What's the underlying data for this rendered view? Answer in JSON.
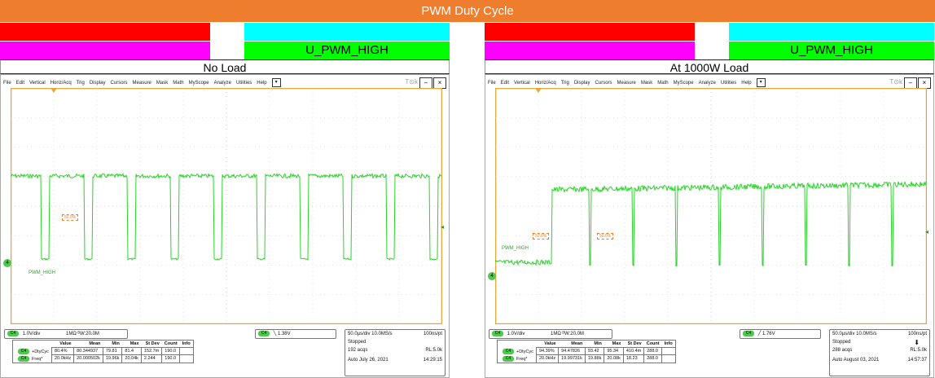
{
  "title": "PWM Duty Cycle",
  "colors": {
    "title_bg": "#ef7d2e",
    "trace": "#2bd32b",
    "graticule": "#e8a53a",
    "cursor": "#e7822d"
  },
  "panels": [
    {
      "band_label": "U_PWM_HIGH",
      "load_label": "No Load",
      "scope": {
        "menu": [
          "File",
          "Edit",
          "Vertical",
          "Horiz/Acq",
          "Trig",
          "Display",
          "Cursors",
          "Measure",
          "Mask",
          "Math",
          "MyScope",
          "Analyze",
          "Utilities",
          "Help"
        ],
        "trace_label": "PWM_HIGH",
        "cursor_tags": [
          "50.0%"
        ],
        "ch_scale": "1.0V/div",
        "ch_impedance": "1MΩ ᴮW:20.0M",
        "trigger": "1.38V",
        "timebase": "50.0µs/div 10.0MS/s",
        "ns_pt": "100ns/pt",
        "state": "Stopped",
        "acqs": "192 acqs",
        "rl": "RL:5.0k",
        "mode_date": "Auto   July 26, 2021",
        "time": "14:29:15",
        "meas_headers": [
          "Value",
          "Mean",
          "Min",
          "Max",
          "St Dev",
          "Count",
          "Info"
        ],
        "meas_rows": [
          {
            "name": "+DtyCyc",
            "vals": [
              "80.4%",
              "80.344937",
              "79.81",
              "81.4",
              "152.7m",
              "190.0",
              ""
            ]
          },
          {
            "name": "Freq*",
            "vals": [
              "20.0kHz",
              "20.000502k",
              "19.96k",
              "20.04k",
              "2.244",
              "190.0",
              ""
            ]
          }
        ]
      }
    },
    {
      "band_label": "U_PWM_HIGH",
      "load_label": "At 1000W Load",
      "scope": {
        "menu": [
          "File",
          "Edit",
          "Vertical",
          "Horiz/Acq",
          "Trig",
          "Display",
          "Cursors",
          "Measure",
          "Mask",
          "Math",
          "MyScope",
          "Analyze",
          "Utilities",
          "Help"
        ],
        "trace_label": "PWM_HIGH",
        "cursor_tags": [
          "50.0%",
          "50.0%"
        ],
        "ch_scale": "1.0V/div",
        "ch_impedance": "1MΩ ᴮW:20.0M",
        "trigger": "1.76V",
        "timebase": "50.0µs/div 10.0MS/s",
        "ns_pt": "100ns/pt",
        "state": "Stopped",
        "acqs": "288 acqs",
        "rl": "RL:5.0k",
        "mode_date": "Auto   August 03, 2021",
        "time": "14:57:37",
        "meas_headers": [
          "Value",
          "Mean",
          "Min",
          "Max",
          "St Dev",
          "Count",
          "Info"
        ],
        "meas_rows": [
          {
            "name": "+DtyCyc",
            "vals": [
              "94.39%",
              "94.47826",
              "93.42",
              "95.34",
              "410.4m",
              "288.0",
              ""
            ]
          },
          {
            "name": "Freq*",
            "vals": [
              "20.0kHz",
              "19.99731k",
              "19.88k",
              "20.08k",
              "18.23",
              "288.0",
              ""
            ]
          }
        ]
      }
    }
  ],
  "chart_data": [
    {
      "type": "line",
      "series": [
        {
          "name": "PWM_HIGH",
          "duty_cycle_percent": 80.4,
          "frequency_khz": 20.0
        }
      ],
      "x_div": "50.0µs/div",
      "y_div": "1.0V/div",
      "grid": true
    },
    {
      "type": "line",
      "series": [
        {
          "name": "PWM_HIGH",
          "duty_cycle_percent": 94.39,
          "frequency_khz": 20.0
        }
      ],
      "x_div": "50.0µs/div",
      "y_div": "1.0V/div",
      "grid": true
    }
  ]
}
